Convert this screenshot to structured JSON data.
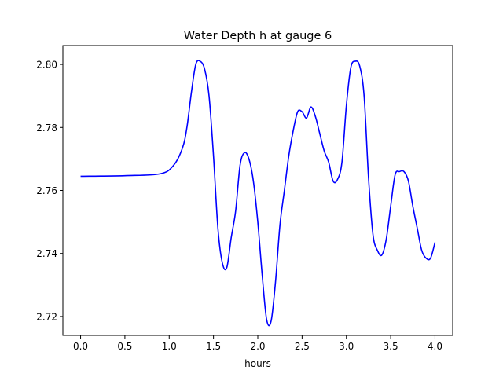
{
  "chart_data": {
    "type": "line",
    "title": "Water Depth h at gauge 6",
    "xlabel": "hours",
    "ylabel": "",
    "xlim": [
      -0.2,
      4.2
    ],
    "ylim": [
      2.714,
      2.806
    ],
    "grid": false,
    "x_ticks": [
      0.0,
      0.5,
      1.0,
      1.5,
      2.0,
      2.5,
      3.0,
      3.5,
      4.0
    ],
    "x_tick_labels": [
      "0.0",
      "0.5",
      "1.0",
      "1.5",
      "2.0",
      "2.5",
      "3.0",
      "3.5",
      "4.0"
    ],
    "y_ticks": [
      2.72,
      2.74,
      2.76,
      2.78,
      2.8
    ],
    "y_tick_labels": [
      "2.72",
      "2.74",
      "2.76",
      "2.78",
      "2.80"
    ],
    "series": [
      {
        "color": "#0000ff",
        "x": [
          0.0,
          0.5,
          0.9,
          1.05,
          1.15,
          1.2,
          1.25,
          1.3,
          1.35,
          1.4,
          1.45,
          1.5,
          1.55,
          1.6,
          1.65,
          1.7,
          1.75,
          1.8,
          1.85,
          1.9,
          1.95,
          2.0,
          2.05,
          2.1,
          2.15,
          2.2,
          2.25,
          2.3,
          2.35,
          2.4,
          2.45,
          2.5,
          2.55,
          2.6,
          2.65,
          2.7,
          2.75,
          2.8,
          2.85,
          2.9,
          2.95,
          3.0,
          3.05,
          3.1,
          3.15,
          3.2,
          3.25,
          3.3,
          3.35,
          3.4,
          3.45,
          3.5,
          3.55,
          3.6,
          3.65,
          3.7,
          3.75,
          3.8,
          3.85,
          3.9,
          3.95,
          4.0
        ],
        "y": [
          2.7645,
          2.7647,
          2.7653,
          2.768,
          2.7735,
          2.78,
          2.791,
          2.8,
          2.801,
          2.7985,
          2.79,
          2.771,
          2.748,
          2.737,
          2.7355,
          2.745,
          2.7535,
          2.768,
          2.772,
          2.77,
          2.763,
          2.75,
          2.733,
          2.719,
          2.7185,
          2.731,
          2.749,
          2.76,
          2.771,
          2.779,
          2.785,
          2.785,
          2.783,
          2.7865,
          2.7835,
          2.778,
          2.7725,
          2.769,
          2.763,
          2.7635,
          2.769,
          2.787,
          2.799,
          2.801,
          2.7995,
          2.79,
          2.764,
          2.746,
          2.741,
          2.7395,
          2.7445,
          2.755,
          2.765,
          2.766,
          2.766,
          2.763,
          2.755,
          2.748,
          2.741,
          2.7385,
          2.7385,
          2.7435
        ]
      }
    ]
  }
}
